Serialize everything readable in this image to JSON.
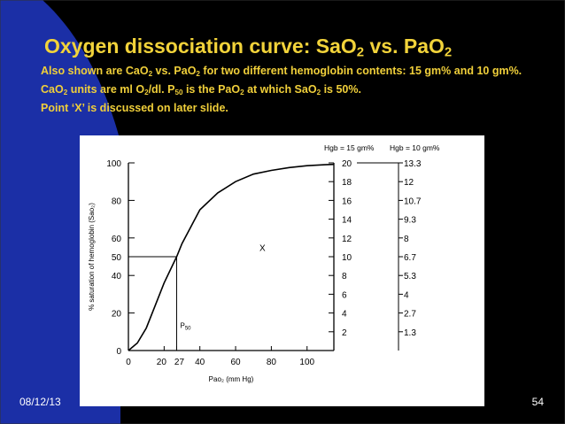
{
  "slide": {
    "title_main": "Oxygen dissociation curve:  SaO",
    "title_sub1": "2",
    "title_mid": " vs. PaO",
    "title_sub2": "2",
    "line1": [
      "Also shown are CaO",
      "2",
      " vs. PaO",
      "2",
      " for two different hemoglobin contents:  15 gm% and 10 gm%."
    ],
    "line2": [
      "CaO",
      "2",
      " units are ml O",
      "2",
      "/dl.  P",
      "50",
      " is the PaO",
      "2",
      " at which SaO",
      "2",
      " is 50%."
    ],
    "line3": "Point ‘X’ is discussed on later slide.",
    "date": "08/12/13",
    "page_number": "54",
    "colors": {
      "background": "#000000",
      "accent_blue": "#1b2fa6",
      "title": "#f2d33a",
      "text": "#f0cf3a",
      "footer": "#ffffff"
    }
  },
  "chart_data": {
    "type": "line",
    "xlabel": "Pao₂ (mm Hg)",
    "ylabel": "% saturation of hemoglobin (Sao₂)",
    "xlim": [
      0,
      115
    ],
    "ylim": [
      0,
      100
    ],
    "x_ticks": [
      "0",
      "20",
      "27",
      "40",
      "60",
      "80",
      "100"
    ],
    "x_tick_values": [
      0,
      20,
      27,
      40,
      60,
      80,
      100
    ],
    "y_ticks": [
      "0",
      "20",
      "40",
      "50",
      "60",
      "80",
      "100"
    ],
    "y_tick_values": [
      0,
      20,
      40,
      50,
      60,
      80,
      100
    ],
    "series": [
      {
        "x": [
          0,
          5,
          10,
          15,
          20,
          25,
          27,
          30,
          35,
          40,
          50,
          60,
          70,
          80,
          90,
          100,
          110,
          115
        ],
        "values": [
          0,
          4,
          12,
          24,
          36,
          46,
          50,
          57,
          66,
          75,
          84,
          90,
          94,
          96,
          97.5,
          98.5,
          99,
          99.2
        ]
      }
    ],
    "right_axis_1": {
      "header": "Hgb = 15 gm%",
      "labels": [
        "20",
        "18",
        "16",
        "14",
        "12",
        "10",
        "8",
        "6",
        "4",
        "2"
      ]
    },
    "right_axis_2": {
      "header": "Hgb = 10 gm%",
      "labels": [
        "13.3",
        "12",
        "10.7",
        "9.3",
        "8",
        "6.7",
        "5.3",
        "4",
        "2.7",
        "1.3"
      ]
    },
    "annotations": {
      "point_x": "X",
      "p50": "P",
      "p50_sub": "50"
    },
    "p50": {
      "x": 27,
      "y": 50
    },
    "x_point": {
      "x": 75,
      "y": 53
    }
  }
}
